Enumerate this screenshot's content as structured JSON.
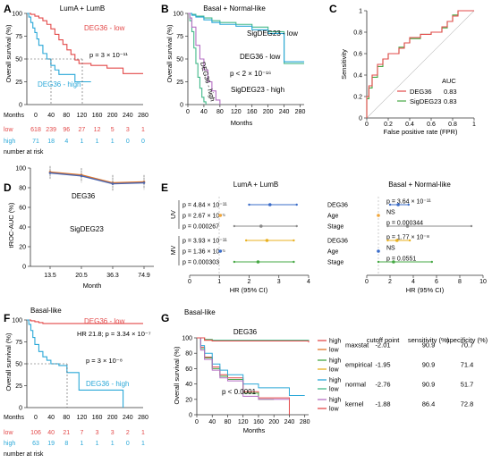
{
  "colors": {
    "low": "#e34a4a",
    "high": "#2aa8d8",
    "sig_low": "#43b98a",
    "sig_high": "#b56fc4",
    "deg36": "#e0762a",
    "sigdeg23": "#4b66b0",
    "orange": "#f0a53a",
    "yellow": "#e8b020",
    "green": "#46a844",
    "blue": "#3a6cc8",
    "grey": "#888888"
  },
  "panels": {
    "A": {
      "letter": "A",
      "title": "LumA + LumB",
      "low_label": "DEG36 - low",
      "high_label": "DEG36 - high",
      "pval": "p = 3 × 10⁻¹¹",
      "ylabel": "Overall survival (%)",
      "yticks": [
        "0",
        "25",
        "50",
        "75",
        "100"
      ],
      "months_label": "Months",
      "xticks": [
        "0",
        "40",
        "80",
        "120",
        "160",
        "200",
        "240",
        "280"
      ],
      "risk_low_label": "low",
      "risk_low": [
        "618",
        "239",
        "96",
        "27",
        "12",
        "5",
        "3",
        "1"
      ],
      "risk_high_label": "high",
      "risk_high": [
        "71",
        "18",
        "4",
        "1",
        "1",
        "1",
        "0",
        "0"
      ],
      "risk_caption": "number at risk"
    },
    "B": {
      "letter": "B",
      "title": "Basal + Normal-like",
      "ylabel": "Overall survival (%)",
      "yticks": [
        "0",
        "25",
        "50",
        "75",
        "100"
      ],
      "xticks": [
        "0",
        "40",
        "80",
        "120",
        "160",
        "200",
        "240",
        "280"
      ],
      "xlabel": "Months",
      "labels": {
        "sig_low": "SigDEG23 - low",
        "deg_low": "DEG36 - low",
        "deg_high": "DEG36 - high",
        "sig_high": "SigDEG23 - high"
      },
      "pval": "p < 2 × 10⁻¹⁶"
    },
    "C": {
      "letter": "C",
      "ylabel": "Sensitivity",
      "xlabel": "False positive rate (FPR)",
      "xticks": [
        "0",
        "0.2",
        "0.4",
        "0.6",
        "0.8",
        "1"
      ],
      "yticks": [
        "0",
        "0.2",
        "0.4",
        "0.6",
        "0.8",
        "1"
      ],
      "auc_title": "AUC",
      "legend": [
        {
          "name": "DEG36",
          "auc": "0.83"
        },
        {
          "name": "SigDEG23",
          "auc": "0.83"
        }
      ]
    },
    "D": {
      "letter": "D",
      "ylabel": "tROC-AUC (%)",
      "xlabel": "Month",
      "yticks": [
        "0",
        "20",
        "40",
        "60",
        "80",
        "100"
      ],
      "xticks": [
        "13.5",
        "20.5",
        "36.3",
        "74.9"
      ],
      "labels": {
        "deg36": "DEG36",
        "sigdeg23": "SigDEG23"
      }
    },
    "E": {
      "letter": "E",
      "left_title": "LumA + LumB",
      "right_title": "Basal + Normal-like",
      "uv": "UV",
      "mv": "MV",
      "row_labels": [
        "DEG36",
        "Age",
        "Stage",
        "DEG36",
        "Age",
        "Stage"
      ],
      "left_pvals": [
        "p = 4.84 × 10⁻¹¹",
        "p = 2.67 × 10⁻⁵",
        "p = 0.000267",
        "p = 3.93 × 10⁻¹¹",
        "p = 1.36 × 10⁻⁵",
        "p = 0.000303"
      ],
      "right_pvals": [
        "p = 3.64 × 10⁻¹¹",
        "NS",
        "p = 0.000344",
        "p = 1.77 × 10⁻⁸",
        "NS",
        "p = 0.0551"
      ],
      "left_xticks": [
        "0",
        "1",
        "2",
        "3",
        "4"
      ],
      "right_xticks": [
        "0",
        "2",
        "4",
        "6",
        "8",
        "10"
      ],
      "xlabel": "HR (95% CI)"
    },
    "F": {
      "letter": "F",
      "title": "Basal-like",
      "low_label": "DEG36 - low",
      "high_label": "DEG36 - high",
      "hr_text": "HR 21.8; p = 3.34 × 10⁻⁷",
      "pval": "p = 3 × 10⁻⁸",
      "ylabel": "Overall survival (%)",
      "yticks": [
        "0",
        "25",
        "50",
        "75",
        "100"
      ],
      "months_label": "Months",
      "xticks": [
        "0",
        "40",
        "80",
        "120",
        "160",
        "200",
        "240",
        "280"
      ],
      "risk_low_label": "low",
      "risk_low": [
        "106",
        "40",
        "21",
        "7",
        "3",
        "3",
        "2",
        "1"
      ],
      "risk_high_label": "high",
      "risk_high": [
        "63",
        "19",
        "8",
        "1",
        "1",
        "1",
        "0",
        "1"
      ],
      "risk_caption": "number at risk"
    },
    "G": {
      "letter": "G",
      "title": "Basal-like",
      "inner_title": "DEG36",
      "ylabel": "Overall survival (%)",
      "xlabel": "Months",
      "yticks": [
        "0",
        "20",
        "40",
        "60",
        "80",
        "100"
      ],
      "xticks": [
        "0",
        "40",
        "80",
        "120",
        "160",
        "200",
        "240",
        "280"
      ],
      "pval": "p < 0.0001",
      "header": [
        "cutoff point",
        "sensitivity (%)",
        "specificity (%)"
      ],
      "methods": [
        {
          "name": "maxstat",
          "cutoff": "-2.01",
          "sens": "90.9",
          "spec": "70.7"
        },
        {
          "name": "empirical",
          "cutoff": "-1.95",
          "sens": "90.9",
          "spec": "71.4"
        },
        {
          "name": "normal",
          "cutoff": "-2.76",
          "sens": "90.9",
          "spec": "51.7"
        },
        {
          "name": "kernel",
          "cutoff": "-1.88",
          "sens": "86.4",
          "spec": "72.8"
        }
      ],
      "legend_high": "high",
      "legend_low": "low"
    }
  },
  "chart_data": [
    {
      "panel": "A",
      "type": "line",
      "title": "LumA + LumB",
      "xlabel": "Months",
      "ylabel": "Overall survival (%)",
      "xlim": [
        0,
        290
      ],
      "ylim": [
        0,
        100
      ],
      "series": [
        {
          "name": "DEG36 - low",
          "x": [
            0,
            10,
            20,
            30,
            40,
            50,
            60,
            70,
            80,
            90,
            100,
            110,
            120,
            130,
            160,
            200,
            240,
            290
          ],
          "y": [
            100,
            99,
            97,
            95,
            92,
            88,
            83,
            77,
            71,
            66,
            60,
            55,
            49,
            45,
            43,
            40,
            34,
            34
          ]
        },
        {
          "name": "DEG36 - high",
          "x": [
            0,
            5,
            10,
            15,
            20,
            25,
            30,
            40,
            50,
            60,
            70,
            80,
            95,
            120,
            160
          ],
          "y": [
            100,
            96,
            90,
            84,
            79,
            72,
            65,
            56,
            50,
            43,
            38,
            33,
            33,
            25,
            25
          ]
        }
      ]
    },
    {
      "panel": "B",
      "type": "line",
      "title": "Basal + Normal-like",
      "xlabel": "Months",
      "ylabel": "Overall survival (%)",
      "xlim": [
        0,
        290
      ],
      "ylim": [
        0,
        100
      ],
      "series": [
        {
          "name": "SigDEG23 - low",
          "x": [
            0,
            10,
            20,
            40,
            60,
            80,
            120,
            160,
            200,
            240,
            290
          ],
          "y": [
            100,
            99,
            97,
            95,
            92,
            90,
            88,
            85,
            80,
            45,
            45
          ]
        },
        {
          "name": "DEG36 - low",
          "x": [
            0,
            10,
            20,
            40,
            60,
            80,
            120,
            160,
            200,
            240,
            290
          ],
          "y": [
            100,
            98,
            96,
            93,
            90,
            88,
            86,
            82,
            78,
            47,
            47
          ]
        },
        {
          "name": "DEG36 - high",
          "x": [
            0,
            5,
            10,
            15,
            20,
            25,
            30,
            35,
            40,
            45
          ],
          "y": [
            100,
            92,
            80,
            62,
            45,
            30,
            18,
            8,
            3,
            0
          ]
        },
        {
          "name": "SigDEG23 - high",
          "x": [
            0,
            5,
            10,
            20,
            30,
            40,
            50,
            60,
            70,
            80
          ],
          "y": [
            100,
            95,
            85,
            65,
            50,
            38,
            25,
            15,
            5,
            0
          ]
        }
      ]
    },
    {
      "panel": "C",
      "type": "line",
      "title": "",
      "xlabel": "False positive rate (FPR)",
      "ylabel": "Sensitivity",
      "xlim": [
        0,
        1
      ],
      "ylim": [
        0,
        1
      ],
      "series": [
        {
          "name": "DEG36",
          "x": [
            0,
            0,
            0.02,
            0.05,
            0.1,
            0.15,
            0.2,
            0.3,
            0.35,
            0.4,
            0.5,
            0.6,
            0.7,
            0.75,
            0.8,
            0.85,
            0.9,
            1.0
          ],
          "y": [
            0,
            0.2,
            0.3,
            0.4,
            0.5,
            0.55,
            0.6,
            0.65,
            0.7,
            0.75,
            0.78,
            0.8,
            0.85,
            0.9,
            0.95,
            1.0,
            1.0,
            1.0
          ]
        },
        {
          "name": "SigDEG23",
          "x": [
            0,
            0,
            0.02,
            0.05,
            0.1,
            0.15,
            0.2,
            0.3,
            0.35,
            0.4,
            0.5,
            0.6,
            0.7,
            0.75,
            0.8,
            0.85,
            0.9,
            1.0
          ],
          "y": [
            0,
            0.18,
            0.28,
            0.38,
            0.48,
            0.55,
            0.6,
            0.66,
            0.7,
            0.74,
            0.78,
            0.8,
            0.84,
            0.9,
            0.96,
            1.0,
            1.0,
            1.0
          ]
        }
      ]
    },
    {
      "panel": "D",
      "type": "line",
      "title": "",
      "xlabel": "Month",
      "ylabel": "tROC-AUC (%)",
      "categories": [
        "13.5",
        "20.5",
        "36.3",
        "74.9"
      ],
      "ylim": [
        0,
        100
      ],
      "series": [
        {
          "name": "DEG36",
          "values": [
            96,
            93,
            85,
            86
          ],
          "err": [
            6,
            7,
            8,
            7
          ]
        },
        {
          "name": "SigDEG23",
          "values": [
            95,
            92,
            84,
            85
          ],
          "err": [
            6,
            7,
            8,
            7
          ]
        }
      ]
    },
    {
      "panel": "E",
      "type": "scatter",
      "title": "LumA + LumB",
      "xlabel": "HR (95% CI)",
      "xlim": [
        0,
        4
      ],
      "rows": [
        "DEG36 (UV)",
        "Age (UV)",
        "Stage (UV)",
        "DEG36 (MV)",
        "Age (MV)",
        "Stage (MV)"
      ],
      "hr": [
        2.7,
        1.03,
        2.4,
        2.6,
        1.03,
        2.3
      ],
      "ci": [
        [
          2.0,
          3.6
        ],
        [
          1.01,
          1.05
        ],
        [
          1.5,
          3.6
        ],
        [
          1.9,
          3.5
        ],
        [
          1.01,
          1.05
        ],
        [
          1.5,
          3.5
        ]
      ]
    },
    {
      "panel": "E",
      "type": "scatter",
      "title": "Basal + Normal-like",
      "xlabel": "HR (95% CI)",
      "xlim": [
        0,
        10
      ],
      "rows": [
        "DEG36 (UV)",
        "Age (UV)",
        "Stage (UV)",
        "DEG36 (MV)",
        "Age (MV)",
        "Stage (MV)"
      ],
      "hr": [
        2.7,
        1.0,
        3.5,
        2.6,
        1.0,
        2.3
      ],
      "ci": [
        [
          2.0,
          3.6
        ],
        [
          0.98,
          1.02
        ],
        [
          1.8,
          9.0
        ],
        [
          1.8,
          3.7
        ],
        [
          0.98,
          1.02
        ],
        [
          1.0,
          5.6
        ]
      ]
    },
    {
      "panel": "F",
      "type": "line",
      "title": "Basal-like",
      "xlabel": "Months",
      "ylabel": "Overall survival (%)",
      "xlim": [
        0,
        290
      ],
      "ylim": [
        0,
        100
      ],
      "series": [
        {
          "name": "DEG36 - low",
          "x": [
            0,
            10,
            20,
            30,
            40,
            90,
            290
          ],
          "y": [
            100,
            99,
            98,
            97,
            96,
            96,
            96
          ]
        },
        {
          "name": "DEG36 - high",
          "x": [
            0,
            5,
            10,
            15,
            20,
            30,
            40,
            50,
            60,
            80,
            100,
            130,
            160,
            240
          ],
          "y": [
            100,
            95,
            88,
            80,
            72,
            64,
            58,
            54,
            50,
            48,
            40,
            20,
            20,
            0
          ]
        }
      ]
    },
    {
      "panel": "G",
      "type": "line",
      "title": "Basal-like",
      "xlabel": "Months",
      "ylabel": "Overall survival (%)",
      "xlim": [
        0,
        290
      ],
      "ylim": [
        0,
        100
      ],
      "series": [
        {
          "name": "maxstat high",
          "x": [
            0,
            10,
            20,
            40,
            60,
            80,
            120,
            160,
            240
          ],
          "y": [
            100,
            88,
            75,
            62,
            52,
            48,
            30,
            22,
            0
          ]
        },
        {
          "name": "maxstat low",
          "x": [
            0,
            20,
            40,
            290
          ],
          "y": [
            100,
            97,
            96,
            95
          ]
        },
        {
          "name": "empirical high",
          "x": [
            0,
            10,
            20,
            40,
            60,
            80,
            120,
            160,
            200
          ],
          "y": [
            100,
            86,
            74,
            60,
            50,
            46,
            28,
            20,
            20
          ]
        },
        {
          "name": "empirical low",
          "x": [
            0,
            20,
            40,
            290
          ],
          "y": [
            100,
            98,
            96,
            96
          ]
        },
        {
          "name": "normal high",
          "x": [
            0,
            10,
            20,
            40,
            60,
            80,
            120,
            160,
            240,
            280
          ],
          "y": [
            100,
            90,
            80,
            66,
            58,
            52,
            40,
            35,
            25,
            25
          ]
        },
        {
          "name": "normal low",
          "x": [
            0,
            20,
            40,
            290
          ],
          "y": [
            100,
            98,
            97,
            95
          ]
        },
        {
          "name": "kernel high",
          "x": [
            0,
            10,
            20,
            40,
            60,
            80,
            120,
            160,
            240
          ],
          "y": [
            100,
            84,
            72,
            58,
            48,
            44,
            24,
            20,
            20
          ]
        },
        {
          "name": "kernel low",
          "x": [
            0,
            20,
            40,
            290
          ],
          "y": [
            100,
            97,
            96,
            94
          ]
        }
      ]
    }
  ]
}
